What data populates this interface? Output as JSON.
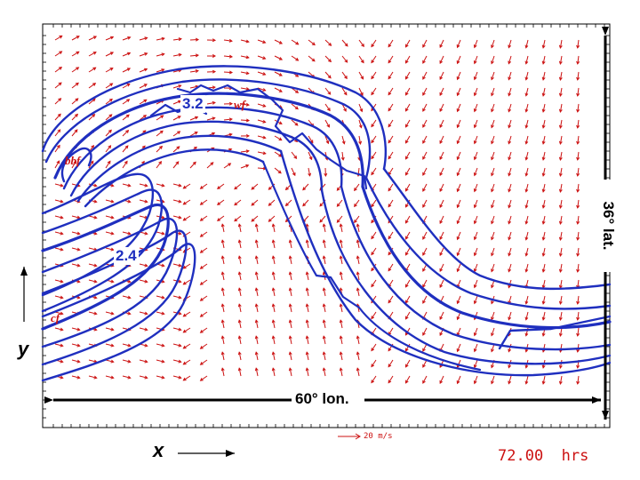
{
  "contour_labels": {
    "upper": "3.2",
    "lower": "2.4"
  },
  "fronts": {
    "warm": "wf",
    "bent_back": "bbf",
    "cold": "cf"
  },
  "axes": {
    "x_letter": "x",
    "y_letter": "y"
  },
  "dimensions": {
    "longitude": "60° lon.",
    "latitude": "36° lat."
  },
  "reference_vector": {
    "label": "20 m/s"
  },
  "time": {
    "value": "72.00",
    "unit": "hrs"
  },
  "colors": {
    "contour": "#1f2fbf",
    "vector": "#cc1111",
    "frame": "#000000"
  }
}
